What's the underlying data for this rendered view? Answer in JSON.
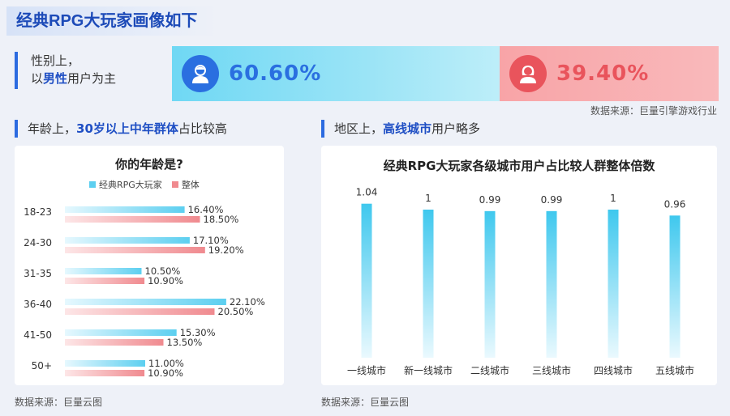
{
  "page_title": "经典RPG大玩家画像如下",
  "gender": {
    "label_line1": "性别上，",
    "label_line2_pre": "以",
    "label_line2_em": "男性",
    "label_line2_post": "用户为主",
    "male_pct": "60.60%",
    "female_pct": "39.40%",
    "male_color": "#2a6fe0",
    "female_color": "#e9545c",
    "source": "数据来源：巨量引擎游戏行业"
  },
  "age_section": {
    "heading_pre": "年龄上，",
    "heading_em": "30岁以上中年群体",
    "heading_post": "占比较高",
    "source": "数据来源：巨量云图"
  },
  "region_section": {
    "heading_pre": "地区上，",
    "heading_em": "高线城市",
    "heading_post": "用户略多",
    "source": "数据来源：巨量云图"
  },
  "chart_data": [
    {
      "type": "bar",
      "orientation": "horizontal",
      "title": "你的年龄是?",
      "categories": [
        "18-23",
        "24-30",
        "31-35",
        "36-40",
        "41-50",
        "50+"
      ],
      "series": [
        {
          "name": "经典RPG大玩家",
          "values": [
            16.4,
            17.1,
            10.5,
            22.1,
            15.3,
            11.0
          ],
          "labels": [
            "16.40%",
            "17.10%",
            "10.50%",
            "22.10%",
            "15.30%",
            "11.00%"
          ],
          "color": "#5ccff0"
        },
        {
          "name": "整体",
          "values": [
            18.5,
            19.2,
            10.9,
            20.5,
            13.5,
            10.9
          ],
          "labels": [
            "18.50%",
            "19.20%",
            "10.90%",
            "20.50%",
            "13.50%",
            "10.90%"
          ],
          "color": "#f08a8f"
        }
      ],
      "legend": "top"
    },
    {
      "type": "bar",
      "orientation": "vertical",
      "title": "经典RPG大玩家各级城市用户占比较人群整体倍数",
      "categories": [
        "一线城市",
        "新一线城市",
        "二线城市",
        "三线城市",
        "四线城市",
        "五线城市"
      ],
      "values": [
        1.04,
        1,
        0.99,
        0.99,
        1,
        0.96
      ],
      "labels": [
        "1.04",
        "1",
        "0.99",
        "0.99",
        "1",
        "0.96"
      ],
      "color": "#3fc8ee"
    }
  ]
}
